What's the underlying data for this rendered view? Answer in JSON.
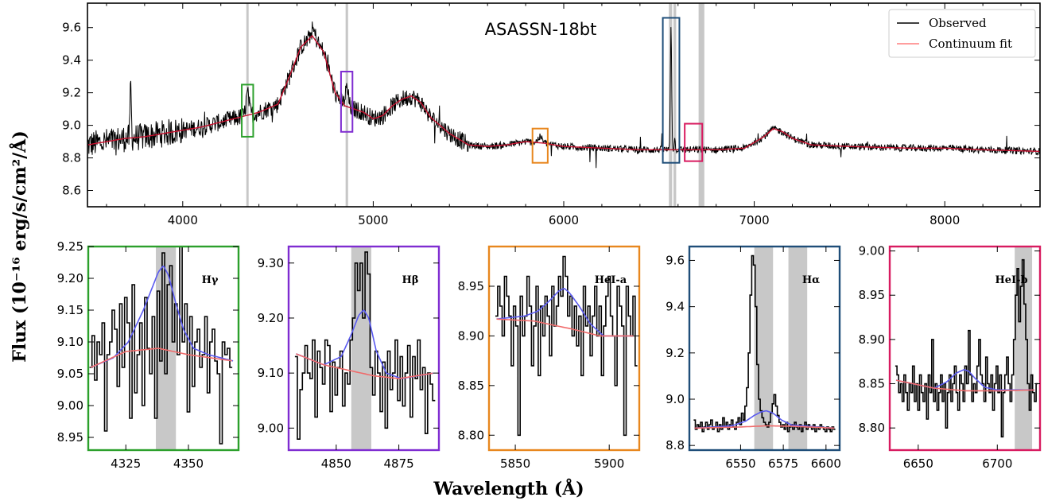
{
  "figure": {
    "ylabel": "Flux (10⁻¹⁶ erg/s/cm²/Å)",
    "xlabel": "Wavelength (Å)"
  },
  "chart_data": [
    {
      "type": "line",
      "title": "ASASSN-18bt",
      "xlim": [
        3500,
        8500
      ],
      "ylim": [
        8.5,
        9.75
      ],
      "xticks": [
        4000,
        5000,
        6000,
        7000,
        8000
      ],
      "yticks": [
        8.6,
        8.8,
        9.0,
        9.2,
        9.4,
        9.6
      ],
      "legend": {
        "position": "top-right",
        "entries": [
          "Observed",
          "Continuum fit"
        ]
      },
      "series": [
        {
          "name": "Observed",
          "color": "#000000"
        },
        {
          "name": "Continuum fit",
          "color": "#ff7f7f"
        }
      ],
      "continuum": {
        "x": [
          3500,
          3600,
          3700,
          3800,
          3900,
          4000,
          4100,
          4200,
          4300,
          4400,
          4500,
          4560,
          4620,
          4680,
          4740,
          4800,
          4850,
          4900,
          4950,
          5000,
          5050,
          5100,
          5150,
          5200,
          5250,
          5300,
          5400,
          5500,
          5600,
          5700,
          5800,
          5900,
          6000,
          6200,
          6400,
          6600,
          6800,
          6950,
          7050,
          7100,
          7150,
          7200,
          7300,
          7500,
          7800,
          8000,
          8200,
          8500
        ],
        "y": [
          8.88,
          8.9,
          8.92,
          8.93,
          8.95,
          8.97,
          8.99,
          9.02,
          9.05,
          9.08,
          9.13,
          9.3,
          9.48,
          9.55,
          9.45,
          9.2,
          9.12,
          9.1,
          9.08,
          9.04,
          9.06,
          9.12,
          9.16,
          9.18,
          9.14,
          9.05,
          8.95,
          8.88,
          8.87,
          8.88,
          8.9,
          8.89,
          8.87,
          8.86,
          8.85,
          8.85,
          8.85,
          8.86,
          8.93,
          8.98,
          8.96,
          8.92,
          8.88,
          8.87,
          8.86,
          8.86,
          8.85,
          8.84
        ]
      },
      "emission_lines": [
        {
          "center": 4340,
          "amp": 0.13,
          "sigma": 8
        },
        {
          "center": 4861,
          "amp": 0.11,
          "sigma": 8
        },
        {
          "center": 4686,
          "amp": 0.04,
          "sigma": 12
        },
        {
          "center": 5876,
          "amp": 0.035,
          "sigma": 12
        },
        {
          "center": 6563,
          "amp": 0.75,
          "sigma": 3.5
        },
        {
          "center": 6583,
          "amp": 0.06,
          "sigma": 3
        },
        {
          "center": 3727,
          "amp": 0.35,
          "sigma": 3
        }
      ],
      "masked_bands": [
        [
          4334,
          4346
        ],
        [
          4855,
          4868
        ],
        [
          6552,
          6569
        ],
        [
          6576,
          6590
        ],
        [
          6708,
          6738
        ]
      ],
      "zoom_boxes": [
        {
          "label": "Hγ",
          "x": [
            4310,
            4370
          ],
          "y": [
            8.93,
            9.25
          ],
          "color": "#2ca02c"
        },
        {
          "label": "Hβ",
          "x": [
            4831,
            4891
          ],
          "y": [
            8.96,
            9.33
          ],
          "color": "#7f2dd1"
        },
        {
          "label": "HeI-a",
          "x": [
            5836,
            5916
          ],
          "y": [
            8.77,
            8.98
          ],
          "color": "#e8871e"
        },
        {
          "label": "Hα",
          "x": [
            6520,
            6607
          ],
          "y": [
            8.77,
            9.66
          ],
          "color": "#1f4e79"
        },
        {
          "label": "HeI-b",
          "x": [
            6635,
            6727
          ],
          "y": [
            8.78,
            9.01
          ],
          "color": "#d81b60"
        }
      ]
    },
    {
      "type": "line",
      "panel": "Hγ",
      "frame_color": "#2ca02c",
      "xlim": [
        4310,
        4370
      ],
      "ylim": [
        8.93,
        9.25
      ],
      "xticks": [
        4325,
        4350
      ],
      "yticks": [
        8.95,
        9.0,
        9.05,
        9.1,
        9.15,
        9.2,
        9.25
      ],
      "mask": [
        [
          4337,
          4345
        ]
      ],
      "continuum": {
        "x": [
          4311,
          4325,
          4338,
          4350,
          4368
        ],
        "y": [
          9.06,
          9.085,
          9.09,
          9.08,
          9.07
        ]
      },
      "model": {
        "x": [
          4311,
          4320,
          4326,
          4332,
          4336,
          4338,
          4340,
          4342,
          4345,
          4348,
          4352,
          4358,
          4368
        ],
        "y": [
          9.06,
          9.075,
          9.1,
          9.15,
          9.19,
          9.21,
          9.22,
          9.205,
          9.16,
          9.12,
          9.09,
          9.08,
          9.07
        ]
      },
      "observed": {
        "x0": 4311,
        "dx": 1.0,
        "y": [
          9.06,
          9.11,
          9.04,
          9.1,
          9.08,
          9.13,
          8.96,
          9.08,
          9.1,
          9.15,
          9.12,
          9.03,
          9.16,
          9.06,
          9.17,
          9.13,
          8.98,
          9.19,
          9.02,
          9.08,
          9.13,
          9.0,
          9.17,
          9.09,
          9.05,
          9.14,
          8.98,
          9.18,
          9.07,
          9.24,
          9.05,
          9.19,
          9.22,
          9.1,
          9.16,
          9.08,
          9.25,
          9.1,
          9.16,
          8.99,
          9.14,
          9.03,
          9.1,
          9.12,
          9.06,
          9.08,
          9.14,
          9.02,
          9.1,
          9.12,
          9.07,
          9.05,
          8.94,
          9.1,
          9.08,
          9.09,
          9.06
        ]
      },
      "label": "Hγ"
    },
    {
      "type": "line",
      "panel": "Hβ",
      "frame_color": "#7f2dd1",
      "xlim": [
        4831,
        4891
      ],
      "ylim": [
        8.96,
        9.33
      ],
      "xticks": [
        4850,
        4875
      ],
      "yticks": [
        9.0,
        9.1,
        9.2,
        9.3
      ],
      "mask": [
        [
          4856,
          4864
        ]
      ],
      "continuum": {
        "x": [
          4834,
          4845,
          4855,
          4865,
          4875,
          4889
        ],
        "y": [
          9.135,
          9.115,
          9.105,
          9.095,
          9.09,
          9.1
        ]
      },
      "model": {
        "x": [
          4834,
          4845,
          4852,
          4856,
          4859,
          4861,
          4863,
          4866,
          4870,
          4876,
          4889
        ],
        "y": [
          9.135,
          9.115,
          9.13,
          9.17,
          9.205,
          9.215,
          9.2,
          9.14,
          9.1,
          9.09,
          9.1
        ]
      },
      "observed": {
        "x0": 4834,
        "dx": 1.0,
        "y": [
          9.13,
          8.98,
          9.07,
          9.1,
          9.15,
          9.1,
          9.09,
          9.16,
          9.02,
          9.14,
          9.11,
          9.08,
          9.16,
          9.15,
          9.03,
          9.12,
          9.06,
          9.11,
          9.14,
          9.04,
          9.1,
          9.08,
          9.16,
          9.2,
          9.3,
          9.25,
          9.3,
          9.2,
          9.32,
          9.28,
          9.11,
          9.06,
          9.14,
          9.1,
          9.03,
          9.12,
          9.0,
          9.14,
          9.07,
          9.1,
          9.16,
          9.05,
          9.13,
          9.04,
          9.1,
          9.15,
          9.02,
          9.13,
          9.09,
          9.16,
          9.07,
          9.11,
          8.99,
          9.1,
          9.08,
          9.05
        ]
      },
      "label": "Hβ"
    },
    {
      "type": "line",
      "panel": "HeI-a",
      "frame_color": "#e8871e",
      "xlim": [
        5836,
        5916
      ],
      "ylim": [
        8.785,
        8.99
      ],
      "xticks": [
        5850,
        5900
      ],
      "yticks": [
        8.8,
        8.85,
        8.9,
        8.95
      ],
      "mask": [],
      "continuum": {
        "x": [
          5840,
          5860,
          5880,
          5895,
          5913
        ],
        "y": [
          8.917,
          8.915,
          8.907,
          8.9,
          8.9
        ]
      },
      "model": {
        "x": [
          5840,
          5855,
          5862,
          5868,
          5873,
          5876,
          5879,
          5884,
          5890,
          5897,
          5913
        ],
        "y": [
          8.917,
          8.92,
          8.925,
          8.935,
          8.945,
          8.948,
          8.943,
          8.93,
          8.912,
          8.9,
          8.9
        ]
      },
      "observed": {
        "x0": 5840,
        "dx": 1.2,
        "y": [
          8.92,
          8.95,
          8.93,
          8.9,
          8.96,
          8.94,
          8.92,
          8.87,
          8.93,
          8.91,
          8.8,
          8.94,
          8.9,
          8.92,
          8.96,
          8.93,
          8.87,
          8.91,
          8.95,
          8.86,
          8.93,
          8.9,
          8.94,
          8.92,
          8.88,
          8.95,
          8.91,
          8.93,
          8.96,
          8.94,
          8.98,
          8.96,
          8.92,
          8.94,
          8.9,
          8.93,
          8.89,
          8.92,
          8.86,
          8.95,
          8.91,
          8.93,
          8.88,
          8.92,
          8.95,
          8.9,
          8.93,
          8.86,
          8.91,
          8.94,
          8.96,
          8.92,
          8.9,
          8.85,
          8.95,
          8.93,
          8.91,
          8.8,
          8.95,
          8.92,
          8.9,
          8.94,
          8.87
        ]
      },
      "label": "HeI-a"
    },
    {
      "type": "line",
      "panel": "Hα",
      "frame_color": "#1f4e79",
      "xlim": [
        6520,
        6608
      ],
      "ylim": [
        8.78,
        9.66
      ],
      "xticks": [
        6550,
        6575,
        6600
      ],
      "yticks": [
        8.8,
        9.0,
        9.2,
        9.4,
        9.6
      ],
      "mask": [
        [
          6558,
          6569
        ],
        [
          6578,
          6589
        ]
      ],
      "continuum": {
        "x": [
          6523,
          6550,
          6565,
          6580,
          6605
        ],
        "y": [
          8.875,
          8.88,
          8.885,
          8.883,
          8.875
        ]
      },
      "model": {
        "x": [
          6523,
          6545,
          6553,
          6558,
          6562,
          6565,
          6569,
          6574,
          6580,
          6605
        ],
        "y": [
          8.875,
          8.885,
          8.905,
          8.93,
          8.945,
          8.95,
          8.94,
          8.91,
          8.888,
          8.875
        ]
      },
      "observed": {
        "x0": 6523,
        "dx": 1.0,
        "y": [
          8.91,
          8.87,
          8.89,
          8.88,
          8.9,
          8.86,
          8.88,
          8.9,
          8.87,
          8.89,
          8.91,
          8.87,
          8.88,
          8.9,
          8.86,
          8.89,
          8.87,
          8.92,
          8.88,
          8.9,
          8.87,
          8.89,
          8.91,
          8.88,
          8.87,
          8.9,
          8.92,
          8.89,
          8.94,
          8.91,
          8.97,
          9.05,
          9.2,
          9.45,
          9.62,
          9.58,
          9.4,
          9.15,
          9.0,
          8.95,
          8.92,
          8.9,
          8.89,
          8.88,
          8.9,
          8.94,
          8.98,
          9.02,
          8.97,
          8.93,
          8.9,
          8.88,
          8.89,
          8.87,
          8.9,
          8.86,
          8.88,
          8.89,
          8.87,
          8.9,
          8.88,
          8.87,
          8.89,
          8.86,
          8.88,
          8.9,
          8.87,
          8.89,
          8.88,
          8.87,
          8.89,
          8.86,
          8.88,
          8.87,
          8.89,
          8.88,
          8.87,
          8.86,
          8.88,
          8.87,
          8.86,
          8.88,
          8.87
        ]
      },
      "label": "Hα"
    },
    {
      "type": "line",
      "panel": "HeI-b",
      "frame_color": "#d81b60",
      "xlim": [
        6632,
        6727
      ],
      "ylim": [
        8.775,
        9.005
      ],
      "xticks": [
        6650,
        6700
      ],
      "yticks": [
        8.8,
        8.85,
        8.9,
        8.95,
        9.0
      ],
      "mask": [
        [
          6711,
          6722
        ]
      ],
      "continuum": {
        "x": [
          6636,
          6660,
          6680,
          6700,
          6724
        ],
        "y": [
          8.854,
          8.845,
          8.842,
          8.842,
          8.843
        ]
      },
      "model": {
        "x": [
          6636,
          6660,
          6668,
          6674,
          6679,
          6682,
          6686,
          6692,
          6700,
          6724
        ],
        "y": [
          8.854,
          8.845,
          8.852,
          8.862,
          8.866,
          8.864,
          8.856,
          8.846,
          8.843,
          8.843
        ]
      },
      "observed": {
        "x0": 6636,
        "dx": 1.1,
        "y": [
          8.87,
          8.86,
          8.84,
          8.85,
          8.83,
          8.86,
          8.84,
          8.82,
          8.85,
          8.84,
          8.87,
          8.83,
          8.85,
          8.82,
          8.86,
          8.84,
          8.83,
          8.85,
          8.81,
          8.86,
          8.84,
          8.9,
          8.83,
          8.85,
          8.82,
          8.84,
          8.86,
          8.83,
          8.85,
          8.8,
          8.84,
          8.86,
          8.83,
          8.85,
          8.87,
          8.84,
          8.82,
          8.86,
          8.85,
          8.83,
          8.87,
          8.85,
          8.91,
          8.86,
          8.83,
          8.85,
          8.84,
          8.87,
          8.9,
          8.86,
          8.85,
          8.83,
          8.88,
          8.85,
          8.84,
          8.86,
          8.82,
          8.85,
          8.87,
          8.84,
          8.86,
          8.79,
          8.84,
          8.86,
          8.88,
          8.85,
          8.83,
          8.86,
          8.9,
          8.95,
          8.98,
          8.92,
          8.96,
          8.99,
          8.94,
          8.9,
          8.85,
          8.82,
          8.86,
          8.84,
          8.83,
          8.85
        ]
      },
      "label": "HeI-b"
    }
  ]
}
